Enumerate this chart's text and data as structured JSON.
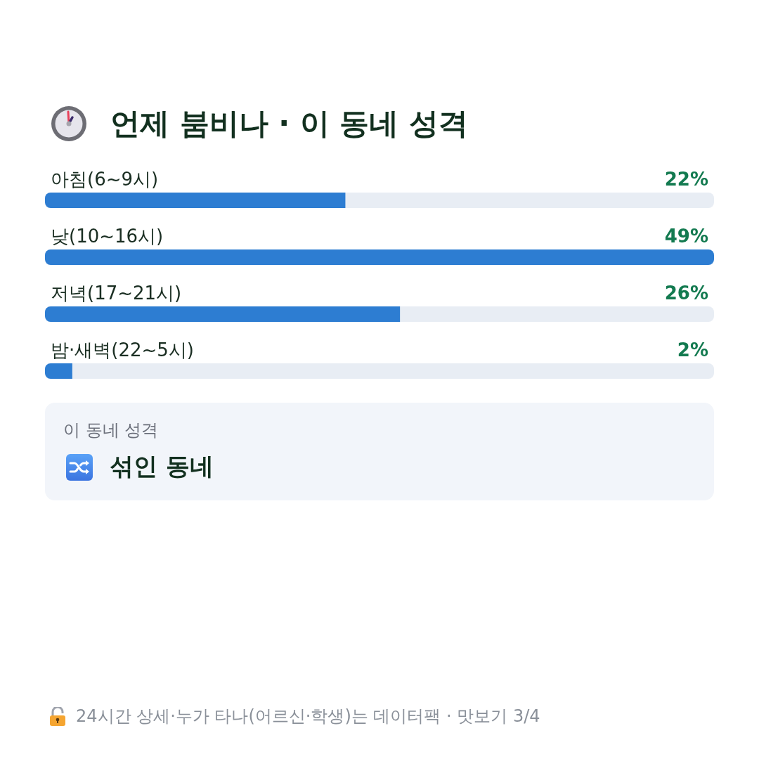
{
  "chart_data": {
    "type": "bar",
    "orientation": "horizontal",
    "title": "언제 붐비나 · 이 동네 성격",
    "categories": [
      "아침(6~9시)",
      "낮(10~16시)",
      "저녁(17~21시)",
      "밤·새벽(22~5시)"
    ],
    "values": [
      22,
      49,
      26,
      2
    ],
    "color": "#2d7dd2",
    "value_labels": [
      "22%",
      "49%",
      "26%",
      "2%"
    ],
    "annotations": [
      "이 동네 성격",
      "섞인 동네",
      "24시간 상세·누가 타나(어르신·학생)는 데이터팩 · 맛보기 3/4"
    ]
  }
}
